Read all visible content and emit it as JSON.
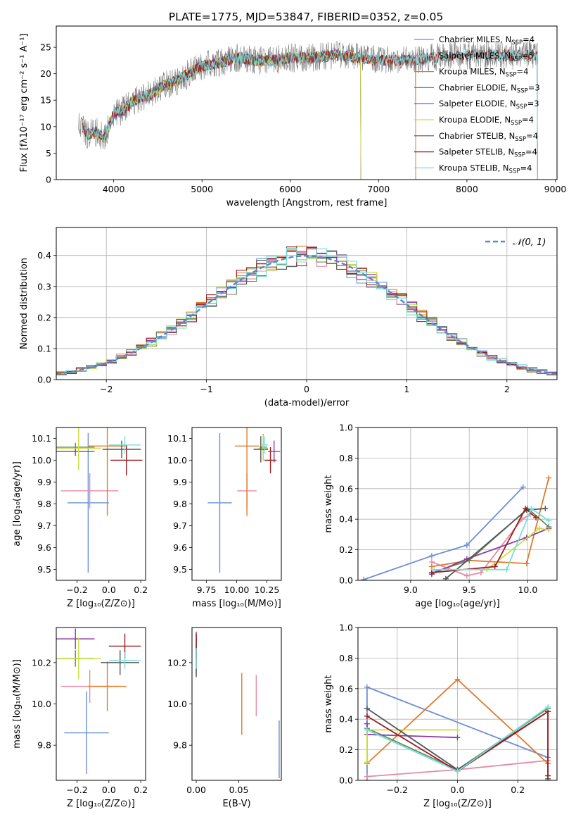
{
  "figure_title": "PLATE=1775, MJD=53847, FIBERID=0352, z=0.05",
  "chart_data": [
    {
      "id": "spectrum",
      "type": "line",
      "xlabel": "wavelength [Angstrom, rest frame]",
      "ylabel": "Flux [fλ10⁻¹⁷ erg cm⁻² s⁻¹ A⁻¹]",
      "xlim": [
        3350,
        9020
      ],
      "ylim": [
        0,
        29
      ],
      "xticks": [
        4000,
        5000,
        6000,
        7000,
        8000,
        9000
      ],
      "yticks": [
        0,
        5,
        10,
        15,
        20,
        25
      ],
      "legend_position": "top-right",
      "series": [
        {
          "name": "Chabrier MILES, N_SSP=4",
          "color": "#6a8fd8",
          "range": [
            3650,
            7420
          ]
        },
        {
          "name": "Salpeter MILES, N_SSP=5",
          "color": "#e68aa4",
          "range": [
            3650,
            7420
          ]
        },
        {
          "name": "Kroupa MILES, N_SSP=4",
          "color": "#e07b2a",
          "range": [
            3650,
            7420
          ]
        },
        {
          "name": "Chabrier ELODIE, N_SSP=3",
          "color": "#5e8f5e",
          "range": [
            3650,
            6800
          ]
        },
        {
          "name": "Salpeter ELODIE, N_SSP=3",
          "color": "#8e3aa6",
          "range": [
            3650,
            6800
          ]
        },
        {
          "name": "Kroupa ELODIE, N_SSP=4",
          "color": "#c9df3c",
          "range": [
            3650,
            6800
          ]
        },
        {
          "name": "Chabrier STELIB, N_SSP=4",
          "color": "#555555",
          "range": [
            3650,
            8800
          ]
        },
        {
          "name": "Salpeter STELIB, N_SSP=4",
          "color": "#9b1c1c",
          "range": [
            3650,
            8800
          ]
        },
        {
          "name": "Kroupa STELIB, N_SSP=4",
          "color": "#77dede",
          "range": [
            3650,
            8800
          ]
        }
      ],
      "continuum": {
        "x": [
          3650,
          3700,
          3800,
          3900,
          4000,
          4100,
          4200,
          4300,
          4400,
          4500,
          4600,
          4700,
          4800,
          4900,
          5000,
          5200,
          5400,
          5600,
          5800,
          6000,
          6200,
          6500,
          6800,
          7000,
          7200,
          7400,
          7600,
          7800,
          8000,
          8200,
          8400,
          8600,
          8800
        ],
        "y": [
          10,
          8.5,
          9,
          8,
          12.5,
          13,
          14.5,
          15.5,
          16,
          17,
          18,
          18.5,
          19.5,
          20.5,
          21.5,
          22,
          23,
          22.5,
          22.5,
          23,
          23,
          23.5,
          23,
          22.5,
          22.5,
          22.5,
          23,
          23.5,
          23.5,
          23.5,
          23.5,
          23.5,
          23.5
        ]
      },
      "data_spectrum_range": [
        3600,
        8800
      ]
    },
    {
      "id": "residuals",
      "type": "bar",
      "xlabel": "(data-model)/error",
      "ylabel": "Normed distribution",
      "xlim": [
        -2.5,
        2.5
      ],
      "ylim": [
        0,
        0.49
      ],
      "xticks": [
        -2,
        -1,
        0,
        1,
        2
      ],
      "yticks": [
        0.0,
        0.1,
        0.2,
        0.3,
        0.4
      ],
      "bin_width": 0.1,
      "reference_curve": {
        "name": "𝒩(0, 1)",
        "color": "#5b84d4",
        "style": "dashed"
      },
      "legend_position": "top-right",
      "histogram_series": [
        {
          "color": "#6a8fd8",
          "seed": 1
        },
        {
          "color": "#e68aa4",
          "seed": 2
        },
        {
          "color": "#e07b2a",
          "seed": 3
        },
        {
          "color": "#5e8f5e",
          "seed": 4
        },
        {
          "color": "#8e3aa6",
          "seed": 5
        },
        {
          "color": "#c9df3c",
          "seed": 6
        },
        {
          "color": "#555555",
          "seed": 7
        },
        {
          "color": "#9b1c1c",
          "seed": 8
        },
        {
          "color": "#77dede",
          "seed": 9
        }
      ]
    },
    {
      "id": "age_vs_Z",
      "type": "scatter",
      "xlabel": "Z [log₁₀(Z/Z⊙)]",
      "ylabel": "age  [log₁₀(age/yr)]",
      "xlim": [
        -0.33,
        0.23
      ],
      "ylim": [
        9.45,
        10.15
      ],
      "xticks": [
        -0.2,
        0.0,
        0.2
      ],
      "yticks": [
        9.5,
        9.6,
        9.7,
        9.8,
        9.9,
        10.0,
        10.1
      ],
      "errorbars": [
        {
          "color": "#6a8fd8",
          "x": -0.13,
          "xerr": 0.13,
          "y": 9.805,
          "yerr": 0.32
        },
        {
          "color": "#e68aa4",
          "x": -0.12,
          "xerr": 0.18,
          "y": 9.86,
          "yerr": 0.08
        },
        {
          "color": "#e07b2a",
          "x": -0.01,
          "xerr": 0.12,
          "y": 10.065,
          "yerr": 0.32
        },
        {
          "color": "#5e8f5e",
          "x": -0.21,
          "xerr": 0.12,
          "y": 10.06,
          "yerr": 0.02
        },
        {
          "color": "#8e3aa6",
          "x": -0.21,
          "xerr": 0.12,
          "y": 10.04,
          "yerr": 0.02
        },
        {
          "color": "#c9df3c",
          "x": -0.19,
          "xerr": 0.14,
          "y": 10.055,
          "yerr": 0.1
        },
        {
          "color": "#555555",
          "x": 0.08,
          "xerr": 0.12,
          "y": 10.05,
          "yerr": 0.04
        },
        {
          "color": "#9b1c1c",
          "x": 0.11,
          "xerr": 0.1,
          "y": 10.0,
          "yerr": 0.07
        },
        {
          "color": "#77dede",
          "x": 0.1,
          "xerr": 0.1,
          "y": 10.07,
          "yerr": 0.04
        }
      ]
    },
    {
      "id": "age_vs_mass",
      "type": "scatter",
      "xlabel": "mass [log₁₀(M/M⊙)]",
      "ylabel": "",
      "xlim": [
        9.63,
        10.37
      ],
      "ylim": [
        9.45,
        10.15
      ],
      "xticks": [
        9.75,
        10.0,
        10.25
      ],
      "yticks": [
        9.5,
        9.6,
        9.7,
        9.8,
        9.9,
        10.0,
        10.1
      ],
      "errorbars": [
        {
          "color": "#6a8fd8",
          "x": 9.86,
          "xerr": 0.1,
          "y": 9.805,
          "yerr": 0.32
        },
        {
          "color": "#e68aa4",
          "x": 10.085,
          "xerr": 0.08,
          "y": 9.86,
          "yerr": 0.08
        },
        {
          "color": "#e07b2a",
          "x": 10.085,
          "xerr": 0.1,
          "y": 10.065,
          "yerr": 0.32
        },
        {
          "color": "#5e8f5e",
          "x": 10.22,
          "xerr": 0.03,
          "y": 10.06,
          "yerr": 0.06
        },
        {
          "color": "#8e3aa6",
          "x": 10.31,
          "xerr": 0.05,
          "y": 10.04,
          "yerr": 0.05
        },
        {
          "color": "#c9df3c",
          "x": 10.22,
          "xerr": 0.04,
          "y": 10.055,
          "yerr": 0.06
        },
        {
          "color": "#555555",
          "x": 10.2,
          "xerr": 0.06,
          "y": 10.05,
          "yerr": 0.06
        },
        {
          "color": "#9b1c1c",
          "x": 10.28,
          "xerr": 0.05,
          "y": 10.0,
          "yerr": 0.06
        },
        {
          "color": "#77dede",
          "x": 10.23,
          "xerr": 0.03,
          "y": 10.07,
          "yerr": 0.04
        }
      ]
    },
    {
      "id": "weight_vs_age",
      "type": "line",
      "xlabel": "age  [log₁₀(age/yr)]",
      "ylabel": "mass weight",
      "xlim": [
        8.55,
        10.25
      ],
      "ylim": [
        0,
        1.0
      ],
      "xticks": [
        9.0,
        9.5,
        10.0
      ],
      "yticks": [
        0.0,
        0.2,
        0.4,
        0.6,
        0.8,
        1.0
      ],
      "series": [
        {
          "color": "#6a8fd8",
          "x": [
            8.6,
            9.18,
            9.48,
            9.96
          ],
          "y": [
            0.005,
            0.16,
            0.23,
            0.61
          ]
        },
        {
          "color": "#e68aa4",
          "x": [
            9.18,
            9.48,
            9.6,
            9.95,
            10.02
          ],
          "y": [
            0.12,
            0.03,
            0.05,
            0.4,
            0.43
          ]
        },
        {
          "color": "#e07b2a",
          "x": [
            9.18,
            9.5,
            9.99,
            10.18
          ],
          "y": [
            0.09,
            0.13,
            0.11,
            0.67
          ]
        },
        {
          "color": "#5e8f5e",
          "x": [
            9.18,
            9.5,
            10.0,
            10.18
          ],
          "y": [
            0.05,
            0.13,
            0.47,
            0.35
          ]
        },
        {
          "color": "#8e3aa6",
          "x": [
            9.18,
            9.48,
            9.99,
            10.18
          ],
          "y": [
            0.04,
            0.14,
            0.28,
            0.34
          ]
        },
        {
          "color": "#c9df3c",
          "x": [
            9.65,
            10.1,
            10.18
          ],
          "y": [
            0.07,
            0.34,
            0.33
          ]
        },
        {
          "color": "#555555",
          "x": [
            9.3,
            9.99,
            10.15
          ],
          "y": [
            0.01,
            0.46,
            0.47
          ]
        },
        {
          "color": "#9b1c1c",
          "x": [
            9.18,
            9.72,
            9.98,
            10.07
          ],
          "y": [
            0.05,
            0.09,
            0.47,
            0.41
          ]
        },
        {
          "color": "#77dede",
          "x": [
            9.2,
            9.82,
            10.03,
            10.18
          ],
          "y": [
            0.07,
            0.07,
            0.47,
            0.39
          ]
        }
      ]
    },
    {
      "id": "mass_vs_Z",
      "type": "scatter",
      "xlabel": "Z [log₁₀(Z/Z⊙)]",
      "ylabel": "mass [log₁₀(M/M⊙)]",
      "xlim": [
        -0.33,
        0.23
      ],
      "ylim": [
        9.63,
        10.37
      ],
      "xticks": [
        -0.2,
        0.0,
        0.2
      ],
      "yticks": [
        9.8,
        10.0,
        10.2
      ],
      "errorbars": [
        {
          "color": "#6a8fd8",
          "x": -0.14,
          "xerr": 0.14,
          "y": 9.86,
          "yerr": 0.2
        },
        {
          "color": "#e68aa4",
          "x": -0.12,
          "xerr": 0.18,
          "y": 10.085,
          "yerr": 0.08
        },
        {
          "color": "#e07b2a",
          "x": -0.01,
          "xerr": 0.12,
          "y": 10.085,
          "yerr": 0.12
        },
        {
          "color": "#5e8f5e",
          "x": -0.21,
          "xerr": 0.12,
          "y": 10.22,
          "yerr": 0.04
        },
        {
          "color": "#8e3aa6",
          "x": -0.21,
          "xerr": 0.12,
          "y": 10.315,
          "yerr": 0.05
        },
        {
          "color": "#c9df3c",
          "x": -0.19,
          "xerr": 0.14,
          "y": 10.22,
          "yerr": 0.1
        },
        {
          "color": "#555555",
          "x": 0.07,
          "xerr": 0.12,
          "y": 10.2,
          "yerr": 0.06
        },
        {
          "color": "#9b1c1c",
          "x": 0.1,
          "xerr": 0.1,
          "y": 10.28,
          "yerr": 0.06
        },
        {
          "color": "#77dede",
          "x": 0.1,
          "xerr": 0.1,
          "y": 10.21,
          "yerr": 0.04
        }
      ]
    },
    {
      "id": "mass_vs_ebv",
      "type": "scatter",
      "xlabel": "E(B-V)",
      "ylabel": "",
      "xlim": [
        -0.005,
        0.1
      ],
      "ylim": [
        9.63,
        10.37
      ],
      "xticks": [
        0.0,
        0.05
      ],
      "yticks": [
        9.8,
        10.0,
        10.2
      ],
      "errorbars": [
        {
          "color": "#6a8fd8",
          "x": 0.0975,
          "y": 9.78,
          "yerr": 0.14
        },
        {
          "color": "#e68aa4",
          "x": 0.0705,
          "y": 10.04,
          "yerr": 0.1
        },
        {
          "color": "#e07b2a",
          "x": 0.0535,
          "y": 10.0,
          "yerr": 0.15
        },
        {
          "color": "#5e8f5e",
          "x": 0.0,
          "y": 10.24,
          "yerr": 0.1
        },
        {
          "color": "#8e3aa6",
          "x": 0.0,
          "y": 10.3,
          "yerr": 0.05
        },
        {
          "color": "#c9df3c",
          "x": 0.0,
          "y": 10.22,
          "yerr": 0.06
        },
        {
          "color": "#555555",
          "x": 0.0,
          "y": 10.21,
          "yerr": 0.08
        },
        {
          "color": "#9b1c1c",
          "x": 0.0,
          "y": 10.28,
          "yerr": 0.06
        },
        {
          "color": "#77dede",
          "x": 0.0,
          "y": 10.22,
          "yerr": 0.05
        }
      ]
    },
    {
      "id": "weight_vs_Z",
      "type": "line",
      "xlabel": "Z [log₁₀(Z/Z⊙)]",
      "ylabel": "mass weight",
      "xlim": [
        -0.33,
        0.33
      ],
      "ylim": [
        0,
        1.0
      ],
      "xticks": [
        -0.2,
        0.0,
        0.2
      ],
      "yticks": [
        0.0,
        0.2,
        0.4,
        0.6,
        0.8,
        1.0
      ],
      "series": [
        {
          "color": "#6a8fd8",
          "x": [
            -0.3,
            -0.3,
            0.3
          ],
          "y": [
            0.0,
            0.61,
            0.15
          ]
        },
        {
          "color": "#e68aa4",
          "x": [
            -0.3,
            0.0,
            0.3
          ],
          "y": [
            0.025,
            0.07,
            0.13
          ]
        },
        {
          "color": "#e07b2a",
          "x": [
            -0.3,
            0.0,
            0.3,
            0.3
          ],
          "y": [
            0.11,
            0.66,
            0.11,
            0.0
          ]
        },
        {
          "color": "#5e8f5e",
          "x": [
            -0.3,
            0.0,
            0.3
          ],
          "y": [
            0.34,
            0.07,
            0.47
          ]
        },
        {
          "color": "#8e3aa6",
          "x": [
            -0.3,
            -0.3,
            0.0
          ],
          "y": [
            0.37,
            0.3,
            0.28
          ]
        },
        {
          "color": "#c9df3c",
          "x": [
            -0.3,
            -0.3,
            0.0
          ],
          "y": [
            0.12,
            0.33,
            0.33
          ]
        },
        {
          "color": "#555555",
          "x": [
            -0.3,
            0.0,
            0.3,
            0.3
          ],
          "y": [
            0.47,
            0.07,
            0.45,
            0.01
          ]
        },
        {
          "color": "#9b1c1c",
          "x": [
            -0.3,
            0.0,
            0.3,
            0.3
          ],
          "y": [
            0.42,
            0.06,
            0.45,
            0.03
          ]
        },
        {
          "color": "#77dede",
          "x": [
            -0.3,
            0.0,
            0.3
          ],
          "y": [
            0.33,
            0.06,
            0.48
          ]
        }
      ]
    }
  ]
}
